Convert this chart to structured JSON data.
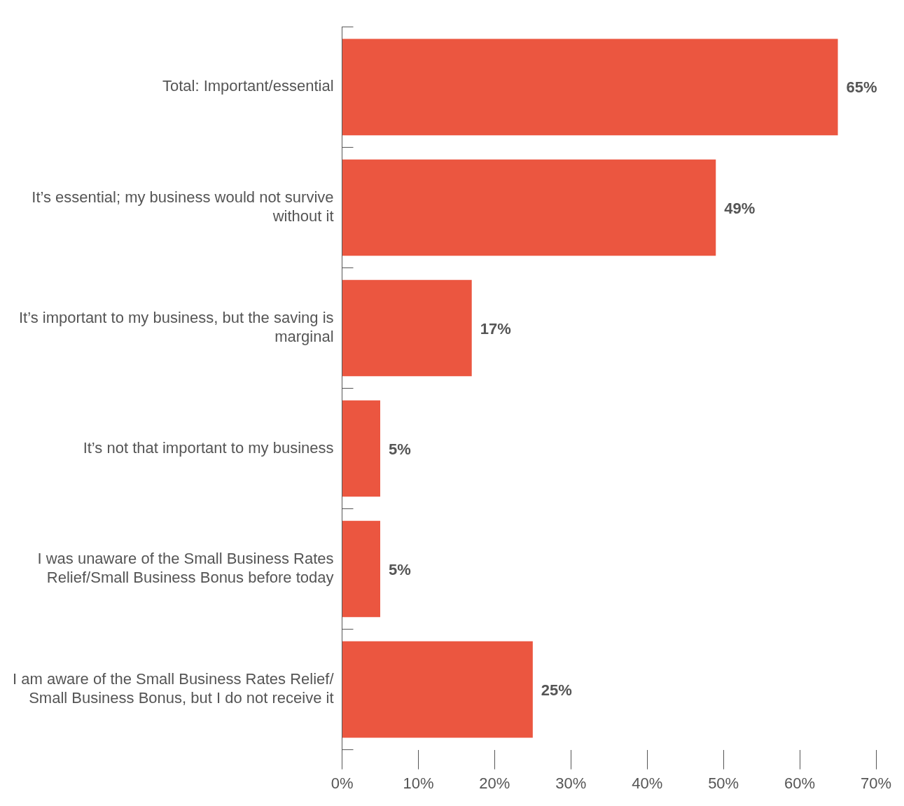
{
  "chart_data": {
    "type": "bar",
    "orientation": "horizontal",
    "categories": [
      "Total: Important/essential",
      "It’s essential; my business would not survive without it",
      "It’s important to my business, but the saving is marginal",
      "It’s not that important to my business",
      "I was unaware of the Small Business Rates Relief/Small Business Bonus before today",
      "I am aware of the Small Business Rates Relief/ Small Business Bonus, but I do not receive it"
    ],
    "values": [
      65,
      49,
      17,
      5,
      5,
      25
    ],
    "value_labels": [
      "65%",
      "49%",
      "17%",
      "5%",
      "5%",
      "25%"
    ],
    "color": "#eb5640",
    "xlim": [
      0,
      70
    ],
    "xticks": [
      {
        "value": 0,
        "label": "0%"
      },
      {
        "value": 10,
        "label": "10%"
      },
      {
        "value": 20,
        "label": "20%"
      },
      {
        "value": 30,
        "label": "30%"
      },
      {
        "value": 40,
        "label": "40%"
      },
      {
        "value": 50,
        "label": "50%"
      },
      {
        "value": 60,
        "label": "60%"
      },
      {
        "value": 70,
        "label": "70%"
      }
    ],
    "grid": false,
    "legend": false
  }
}
